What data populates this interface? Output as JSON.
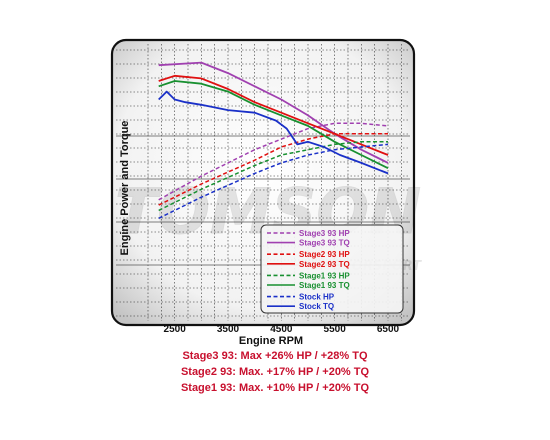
{
  "chart_data": {
    "type": "line",
    "xlabel": "Engine RPM",
    "ylabel": "Engine Power and Torque",
    "xlim": [
      2000,
      6800
    ],
    "ylim": [
      0,
      100
    ],
    "x_ticks": [
      2500,
      3500,
      4500,
      5500,
      6500
    ],
    "grid": true,
    "legend_position": "bottom-right",
    "watermark": "TOMSON",
    "watermark_sub": "MOTORSPORT",
    "series": [
      {
        "name": "Stage3 93 HP",
        "color": "#a040b0",
        "style": "dashed",
        "x": [
          2200,
          3000,
          4000,
          4500,
          5000,
          5500,
          6000,
          6500
        ],
        "y": [
          44,
          53,
          63,
          67,
          71,
          73,
          73,
          72
        ]
      },
      {
        "name": "Stage3 93 TQ",
        "color": "#a040b0",
        "style": "solid",
        "x": [
          2200,
          3000,
          3500,
          4000,
          4500,
          5000,
          5500,
          6000,
          6500
        ],
        "y": [
          95,
          96,
          92,
          87,
          82,
          76,
          69,
          63,
          58
        ]
      },
      {
        "name": "Stage2 93 HP",
        "color": "#e01010",
        "style": "dashed",
        "x": [
          2200,
          3000,
          4000,
          4500,
          5000,
          5500,
          6000,
          6500
        ],
        "y": [
          42,
          50,
          59,
          64,
          67,
          69,
          69,
          69
        ]
      },
      {
        "name": "Stage2 93 TQ",
        "color": "#e01010",
        "style": "solid",
        "x": [
          2200,
          2500,
          3000,
          3500,
          4000,
          4500,
          5000,
          5500,
          6000,
          6500
        ],
        "y": [
          89,
          91,
          90,
          86,
          81,
          77,
          73,
          69,
          65,
          61
        ]
      },
      {
        "name": "Stage1 93 HP",
        "color": "#189030",
        "style": "dashed",
        "x": [
          2200,
          3000,
          4000,
          4500,
          5000,
          5500,
          6000,
          6500
        ],
        "y": [
          40,
          48,
          57,
          61,
          63,
          65,
          66,
          66
        ]
      },
      {
        "name": "Stage1 93 TQ",
        "color": "#189030",
        "style": "solid",
        "x": [
          2200,
          2500,
          3000,
          3500,
          4000,
          4500,
          5000,
          5500,
          6000,
          6500
        ],
        "y": [
          87,
          89,
          88,
          85,
          80,
          76,
          72,
          66,
          61,
          56
        ]
      },
      {
        "name": "Stock HP",
        "color": "#1a30c8",
        "style": "dashed",
        "x": [
          2200,
          3000,
          4000,
          4500,
          5000,
          5500,
          6000,
          6500
        ],
        "y": [
          37,
          45,
          54,
          58,
          61,
          63,
          64,
          65
        ]
      },
      {
        "name": "Stock TQ",
        "color": "#1a30c8",
        "style": "solid",
        "x": [
          2200,
          2350,
          2500,
          2700,
          3000,
          3500,
          4000,
          4400,
          4600,
          4800,
          5000,
          5300,
          5600,
          6000,
          6500
        ],
        "y": [
          82,
          85,
          82,
          81,
          80,
          78,
          77,
          74,
          71,
          65,
          66,
          64,
          61,
          58,
          54
        ]
      }
    ]
  },
  "summary": [
    "Stage3 93: Max +26% HP / +28% TQ",
    "Stage2 93: Max. +17% HP / +20% TQ",
    "Stage1 93: Max. +10% HP / +20% TQ"
  ]
}
